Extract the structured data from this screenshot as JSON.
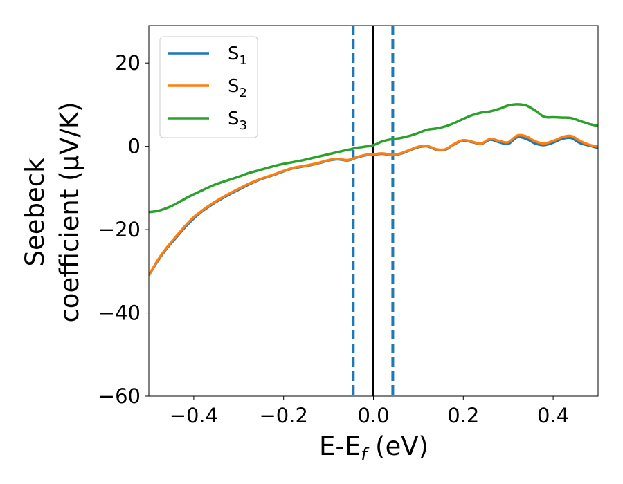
{
  "chart_data": {
    "type": "line",
    "xlabel": {
      "main": "E-E",
      "sub": "f",
      "unit": " (eV)"
    },
    "ylabel": {
      "line1": "Seebeck",
      "line2": "coefficient  (μV/K)"
    },
    "xlim": [
      -0.5,
      0.5
    ],
    "ylim": [
      -60,
      29
    ],
    "xticks": [
      -0.4,
      -0.2,
      0.0,
      0.2,
      0.4
    ],
    "xtick_labels": [
      "−0.4",
      "−0.2",
      "0.0",
      "0.2",
      "0.4"
    ],
    "yticks": [
      -60,
      -40,
      -20,
      0,
      20
    ],
    "ytick_labels": [
      "−60",
      "−40",
      "−20",
      "0",
      "20"
    ],
    "legend_position": "top-left",
    "series": [
      {
        "name": "S",
        "sub": "1",
        "color": "#1f77b4",
        "x": [
          -0.5,
          -0.48,
          -0.46,
          -0.44,
          -0.42,
          -0.4,
          -0.38,
          -0.36,
          -0.34,
          -0.32,
          -0.3,
          -0.28,
          -0.26,
          -0.24,
          -0.22,
          -0.2,
          -0.18,
          -0.16,
          -0.14,
          -0.12,
          -0.1,
          -0.08,
          -0.06,
          -0.05,
          -0.04,
          -0.02,
          0.0,
          0.02,
          0.04,
          0.06,
          0.08,
          0.1,
          0.12,
          0.14,
          0.16,
          0.18,
          0.2,
          0.22,
          0.24,
          0.26,
          0.28,
          0.3,
          0.32,
          0.34,
          0.36,
          0.38,
          0.4,
          0.42,
          0.44,
          0.46,
          0.48,
          0.5
        ],
        "y": [
          -31.0,
          -27.5,
          -24.5,
          -22.0,
          -19.5,
          -17.3,
          -15.5,
          -14.0,
          -12.7,
          -11.5,
          -10.4,
          -9.3,
          -8.3,
          -7.5,
          -6.8,
          -6.0,
          -5.3,
          -4.9,
          -4.5,
          -4.0,
          -3.4,
          -3.1,
          -3.4,
          -3.2,
          -2.8,
          -2.2,
          -2.0,
          -1.8,
          -2.1,
          -1.8,
          -1.0,
          -0.2,
          0.0,
          -0.8,
          -0.8,
          0.5,
          1.4,
          1.0,
          0.6,
          1.6,
          1.0,
          0.6,
          2.2,
          1.8,
          0.7,
          0.3,
          0.9,
          1.8,
          2.0,
          0.8,
          0.2,
          -0.4
        ]
      },
      {
        "name": "S",
        "sub": "2",
        "color": "#ff7f0e",
        "x": [
          -0.5,
          -0.48,
          -0.46,
          -0.44,
          -0.42,
          -0.4,
          -0.38,
          -0.36,
          -0.34,
          -0.32,
          -0.3,
          -0.28,
          -0.26,
          -0.24,
          -0.22,
          -0.2,
          -0.18,
          -0.16,
          -0.14,
          -0.12,
          -0.1,
          -0.08,
          -0.06,
          -0.05,
          -0.04,
          -0.02,
          0.0,
          0.02,
          0.04,
          0.06,
          0.08,
          0.1,
          0.12,
          0.14,
          0.16,
          0.18,
          0.2,
          0.22,
          0.24,
          0.26,
          0.28,
          0.3,
          0.32,
          0.34,
          0.36,
          0.38,
          0.4,
          0.42,
          0.44,
          0.46,
          0.48,
          0.5
        ],
        "y": [
          -31.0,
          -27.3,
          -24.3,
          -21.7,
          -19.2,
          -17.0,
          -15.3,
          -13.8,
          -12.5,
          -11.3,
          -10.2,
          -9.1,
          -8.2,
          -7.4,
          -6.7,
          -5.9,
          -5.2,
          -4.8,
          -4.4,
          -3.9,
          -3.3,
          -3.0,
          -3.3,
          -3.1,
          -2.7,
          -2.1,
          -1.9,
          -1.7,
          -2.0,
          -1.7,
          -0.9,
          -0.1,
          0.1,
          -0.7,
          -0.7,
          0.6,
          1.5,
          1.1,
          0.7,
          1.8,
          1.3,
          1.0,
          2.6,
          2.4,
          1.2,
          0.7,
          1.3,
          2.2,
          2.5,
          1.3,
          0.4,
          -0.1
        ]
      },
      {
        "name": "S",
        "sub": "3",
        "color": "#2ca02c",
        "x": [
          -0.5,
          -0.48,
          -0.46,
          -0.44,
          -0.42,
          -0.4,
          -0.38,
          -0.36,
          -0.34,
          -0.32,
          -0.3,
          -0.28,
          -0.26,
          -0.24,
          -0.22,
          -0.2,
          -0.18,
          -0.16,
          -0.14,
          -0.12,
          -0.1,
          -0.08,
          -0.06,
          -0.05,
          -0.04,
          -0.02,
          0.0,
          0.02,
          0.04,
          0.06,
          0.08,
          0.1,
          0.12,
          0.14,
          0.16,
          0.18,
          0.2,
          0.22,
          0.24,
          0.26,
          0.28,
          0.3,
          0.32,
          0.34,
          0.36,
          0.38,
          0.4,
          0.42,
          0.44,
          0.46,
          0.48,
          0.5
        ],
        "y": [
          -15.8,
          -15.5,
          -14.8,
          -13.8,
          -12.6,
          -11.5,
          -10.5,
          -9.5,
          -8.7,
          -8.0,
          -7.3,
          -6.5,
          -5.9,
          -5.3,
          -4.7,
          -4.2,
          -3.8,
          -3.4,
          -2.9,
          -2.4,
          -1.9,
          -1.4,
          -0.9,
          -0.7,
          -0.4,
          -0.1,
          0.3,
          1.2,
          1.7,
          2.0,
          2.5,
          3.2,
          4.0,
          4.3,
          4.8,
          5.6,
          6.6,
          7.5,
          8.1,
          8.4,
          9.0,
          9.8,
          10.1,
          9.8,
          8.6,
          7.1,
          7.0,
          6.9,
          6.8,
          6.1,
          5.4,
          4.9
        ]
      }
    ],
    "vlines": [
      {
        "x": -0.045,
        "style": "dashed",
        "color": "#1f77b4"
      },
      {
        "x": 0.0,
        "style": "solid",
        "color": "#000000"
      },
      {
        "x": 0.043,
        "style": "dashed",
        "color": "#1f77b4"
      }
    ]
  }
}
